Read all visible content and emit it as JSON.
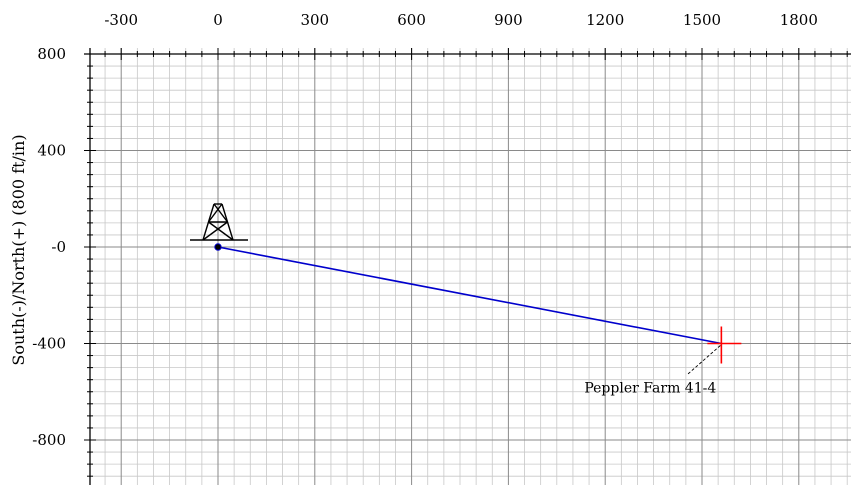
{
  "chart_data": {
    "type": "scatter",
    "title": "",
    "xlabel": "",
    "ylabel": "South(-)/North(+) (800 ft/in)",
    "xlim": [
      -400,
      1950
    ],
    "ylim": [
      -950,
      810
    ],
    "x_ticks": [
      -300,
      0,
      300,
      600,
      900,
      1200,
      1500,
      1800
    ],
    "x_tick_labels": [
      "-300",
      "0",
      "300",
      "600",
      "900",
      "1200",
      "1500",
      "1800"
    ],
    "y_ticks": [
      800,
      400,
      0,
      -400,
      -800
    ],
    "y_tick_labels": [
      "800",
      "400",
      "-0",
      "-400",
      "-800"
    ],
    "major_grid_x": 300,
    "major_grid_y": 400,
    "minor_grid": 50,
    "grid": true,
    "series": [
      {
        "type": "line",
        "color": "#0000cc",
        "points": [
          [
            0,
            0
          ],
          [
            1560,
            -400
          ]
        ]
      }
    ],
    "markers": [
      {
        "kind": "rig-icon",
        "x": 0,
        "y": 0
      },
      {
        "kind": "surface-dot",
        "x": 0,
        "y": 0
      },
      {
        "kind": "target-cross",
        "x": 1560,
        "y": -400,
        "color": "#ff0000"
      }
    ],
    "annotations": [
      {
        "text": "Peppler Farm 41-4",
        "x": 1560,
        "y": -400
      }
    ]
  }
}
